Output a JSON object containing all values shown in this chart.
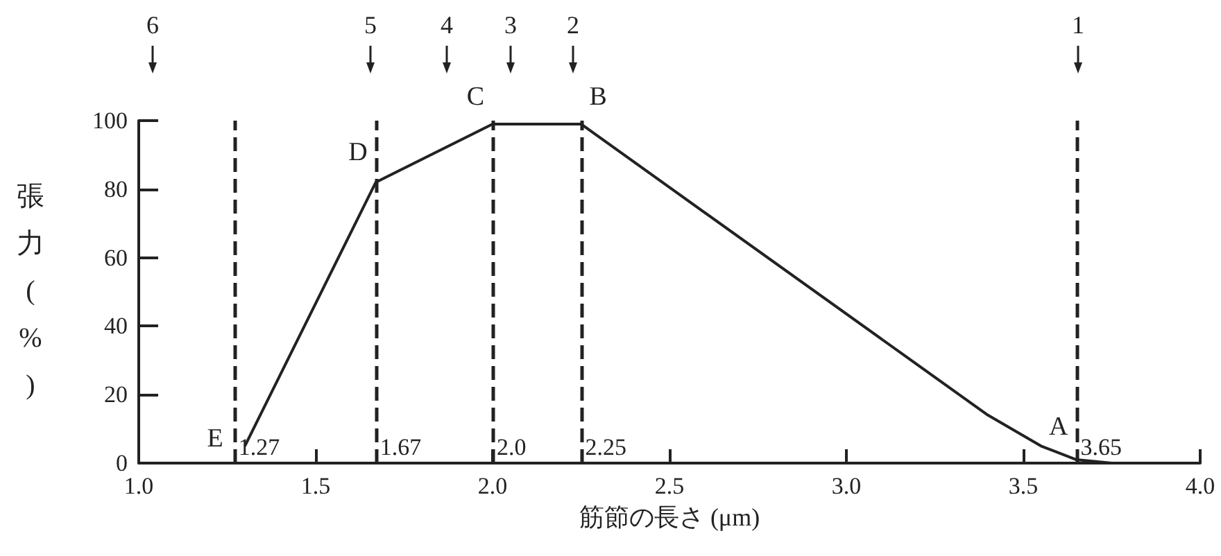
{
  "chart_data": {
    "type": "line",
    "xlabel": "筋節の長さ (μm)",
    "ylabel": "張力(%)",
    "x": [
      1.3,
      1.67,
      2.0,
      2.25,
      3.4,
      3.55,
      3.65,
      3.75
    ],
    "series": [
      {
        "color": "#222222",
        "values": [
          5,
          82,
          99,
          99,
          14,
          5,
          1,
          0
        ]
      }
    ],
    "xlim": [
      1.0,
      4.0
    ],
    "xticks": [
      {
        "value": 1.0,
        "label": "1.0"
      },
      {
        "value": 1.5,
        "label": "1.5"
      },
      {
        "value": 2.0,
        "label": "2.0"
      },
      {
        "value": 2.5,
        "label": "2.5"
      },
      {
        "value": 3.0,
        "label": "3.0"
      },
      {
        "value": 3.5,
        "label": "3.5"
      },
      {
        "value": 4.0,
        "label": "4.0"
      }
    ],
    "ylim": [
      0,
      100
    ],
    "yticks": [
      0,
      20,
      40,
      60,
      80,
      100
    ],
    "grid": false,
    "marker": "none",
    "line_style": "solid",
    "ref_lines": [
      {
        "axis": "x",
        "value": 1.27,
        "label": "1.27",
        "line_style": "dashed"
      },
      {
        "axis": "x",
        "value": 1.67,
        "label": "1.67",
        "line_style": "dashed"
      },
      {
        "axis": "x",
        "value": 2.0,
        "label": "2.0",
        "line_style": "dashed"
      },
      {
        "axis": "x",
        "value": 2.25,
        "label": "2.25",
        "line_style": "dashed"
      },
      {
        "axis": "x",
        "value": 3.65,
        "label": "3.65",
        "line_style": "dashed"
      }
    ],
    "annotations": [
      {
        "text": "E",
        "x": 1.27,
        "y": 0
      },
      {
        "text": "D",
        "x": 1.67,
        "y": 82
      },
      {
        "text": "C",
        "x": 2.0,
        "y": 99
      },
      {
        "text": "B",
        "x": 2.25,
        "y": 99
      },
      {
        "text": "A",
        "x": 3.65,
        "y": 1
      },
      "6",
      "5",
      "4",
      "3",
      "2",
      "1"
    ]
  }
}
